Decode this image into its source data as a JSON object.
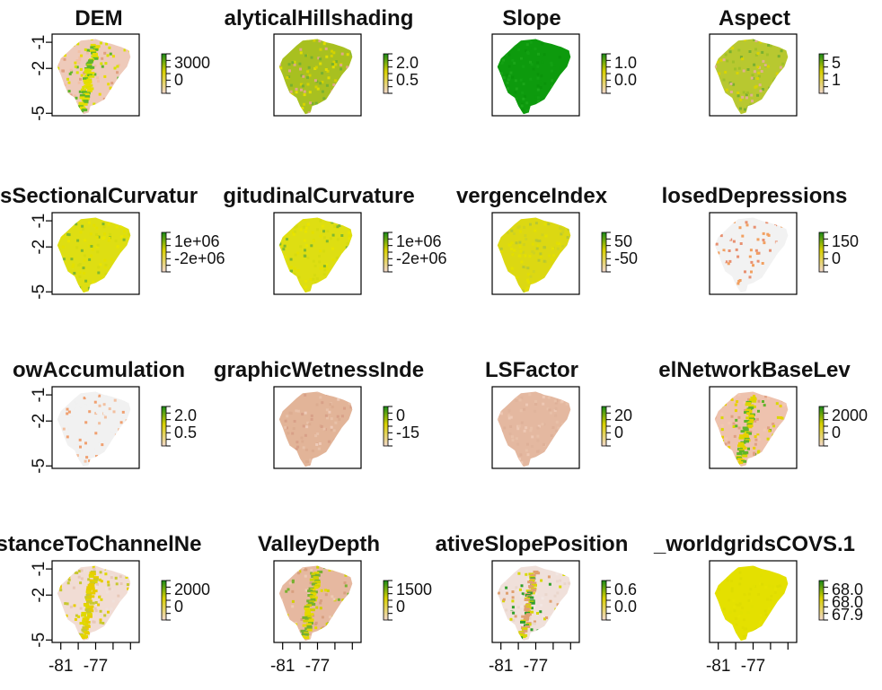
{
  "chart_data": [
    {
      "type": "heatmap",
      "title": "DEM",
      "legend_labels": [
        "3000",
        "0"
      ],
      "fill_colors": [
        "#eecaba",
        "#f2c0a4",
        "#e0a080",
        "#5fb52a",
        "#d8e000",
        "#e8dc00"
      ],
      "xlabels": [],
      "ylabels": [
        "-1",
        "-2",
        "-5"
      ]
    },
    {
      "type": "heatmap",
      "title": "alyticalHillshading",
      "legend_labels": [
        "2.0",
        "0.5"
      ],
      "fill_colors": [
        "#a8c020",
        "#78b030",
        "#d4d200",
        "#e0a888",
        "#e0de00"
      ],
      "xlabels": [],
      "ylabels": []
    },
    {
      "type": "heatmap",
      "title": "Slope",
      "legend_labels": [
        "1.0",
        "0.0"
      ],
      "fill_colors": [
        "#0d9a0d",
        "#12a012",
        "#0a940a",
        "#0d9a0d",
        "#1aa518"
      ],
      "xlabels": [],
      "ylabels": []
    },
    {
      "type": "heatmap",
      "title": "Aspect",
      "legend_labels": [
        "5",
        "1"
      ],
      "fill_colors": [
        "#b8c830",
        "#78b030",
        "#e0b090",
        "#d8d400",
        "#a0c028"
      ],
      "xlabels": [],
      "ylabels": []
    },
    {
      "type": "heatmap",
      "title": "sSectionalCurvatur",
      "legend_labels": [
        "1e+06",
        "-2e+06"
      ],
      "fill_colors": [
        "#dede12",
        "#e4e000",
        "#d6da10",
        "#80b830",
        "#e8e400"
      ],
      "xlabels": [],
      "ylabels": [
        "-1",
        "-2",
        "-5"
      ]
    },
    {
      "type": "heatmap",
      "title": "gitudinalCurvature",
      "legend_labels": [
        "1e+06",
        "-2e+06"
      ],
      "fill_colors": [
        "#dede12",
        "#e4e000",
        "#d6da10",
        "#80b830",
        "#e8e400"
      ],
      "xlabels": [],
      "ylabels": []
    },
    {
      "type": "heatmap",
      "title": "vergenceIndex",
      "legend_labels": [
        "50",
        "-50"
      ],
      "fill_colors": [
        "#dcd812",
        "#e2de00",
        "#cfd220",
        "#b8c830",
        "#e4e000"
      ],
      "xlabels": [],
      "ylabels": []
    },
    {
      "type": "heatmap",
      "title": "losedDepressions",
      "legend_labels": [
        "150",
        "0"
      ],
      "fill_colors": [
        "#f2f2f2",
        "#f2f2f2",
        "#f2f2f2",
        "#f2a060",
        "#e89070"
      ],
      "xlabels": [],
      "ylabels": []
    },
    {
      "type": "heatmap",
      "title": "owAccumulation",
      "legend_labels": [
        "2.0",
        "0.5"
      ],
      "fill_colors": [
        "#f1f1f1",
        "#f1f1f1",
        "#f1f1f1",
        "#f0a070",
        "#f2c0a0"
      ],
      "xlabels": [],
      "ylabels": [
        "-1",
        "-2",
        "-5"
      ]
    },
    {
      "type": "heatmap",
      "title": "graphicWetnessInde",
      "legend_labels": [
        "0",
        "-15"
      ],
      "fill_colors": [
        "#e2b498",
        "#dcac90",
        "#eecab8",
        "#d8a088",
        "#e8c0a8"
      ],
      "xlabels": [],
      "ylabels": []
    },
    {
      "type": "heatmap",
      "title": "LSFactor",
      "legend_labels": [
        "20",
        "0"
      ],
      "fill_colors": [
        "#e4b8a0",
        "#deb098",
        "#eec8b4",
        "#e8c0a8",
        "#e0b49c"
      ],
      "xlabels": [],
      "ylabels": []
    },
    {
      "type": "heatmap",
      "title": "elNetworkBaseLev",
      "legend_labels": [
        "2000",
        "0"
      ],
      "fill_colors": [
        "#eec2ae",
        "#f2c8b2",
        "#e0a080",
        "#5fb52a",
        "#d8d800",
        "#e8d000"
      ],
      "xlabels": [],
      "ylabels": []
    },
    {
      "type": "heatmap",
      "title": "stanceToChannelNe",
      "legend_labels": [
        "2000",
        "0"
      ],
      "fill_colors": [
        "#f1dcd4",
        "#f0e0da",
        "#e8c8b8",
        "#c8c830",
        "#e0d800",
        "#e8cc00"
      ],
      "xlabels": [
        "-81",
        "-77"
      ],
      "ylabels": [
        "-1",
        "-2",
        "-5"
      ]
    },
    {
      "type": "heatmap",
      "title": "ValleyDepth",
      "legend_labels": [
        "1500",
        "0"
      ],
      "fill_colors": [
        "#e6b8a0",
        "#d8a080",
        "#eecab4",
        "#78b030",
        "#d0d000",
        "#e4d800"
      ],
      "xlabels": [
        "-81",
        "-77"
      ],
      "ylabels": []
    },
    {
      "type": "heatmap",
      "title": "ativeSlopePosition",
      "legend_labels": [
        "0.6",
        "0.0"
      ],
      "fill_colors": [
        "#f0e0da",
        "#ead6cc",
        "#f2e6e2",
        "#2f9f2a",
        "#d8d800",
        "#e0a070"
      ],
      "xlabels": [
        "-81",
        "-77"
      ],
      "ylabels": []
    },
    {
      "type": "heatmap",
      "title": "_worldgridsCOVS.1",
      "legend_labels": [
        "68.0",
        "68.0",
        "67.9"
      ],
      "fill_colors": [
        "#e4e000",
        "#e0dc00",
        "#e6e200",
        "#dedc00",
        "#e2e000"
      ],
      "xlabels": [
        "-81",
        "-77"
      ],
      "ylabels": []
    }
  ]
}
